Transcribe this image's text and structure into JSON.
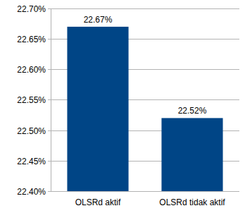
{
  "chart_data": {
    "type": "bar",
    "categories": [
      "OLSRd aktif",
      "OLSRd tidak aktif"
    ],
    "values": [
      22.67,
      22.52
    ],
    "value_labels": [
      "22.67%",
      "22.52%"
    ],
    "color": "#004586",
    "ylim": [
      22.4,
      22.7
    ],
    "yticks": [
      {
        "value": 22.4,
        "label": "22.40%"
      },
      {
        "value": 22.45,
        "label": "22.45%"
      },
      {
        "value": 22.5,
        "label": "22.50%"
      },
      {
        "value": 22.55,
        "label": "22.55%"
      },
      {
        "value": 22.6,
        "label": "22.60%"
      },
      {
        "value": 22.65,
        "label": "22.65%"
      },
      {
        "value": 22.7,
        "label": "22.70%"
      }
    ],
    "grid": true,
    "data_labels": true
  }
}
